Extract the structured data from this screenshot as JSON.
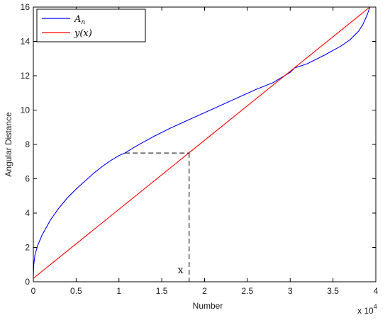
{
  "chart_data": {
    "type": "line",
    "xlabel": "Number",
    "ylabel": "Angular Distance",
    "x_multiplier": "x 10",
    "x_multiplier_exp": "4",
    "xlim": [
      0,
      4
    ],
    "ylim": [
      0,
      16
    ],
    "xticks": [
      0,
      0.5,
      1,
      1.5,
      2,
      2.5,
      3,
      3.5,
      4
    ],
    "xtick_labels": [
      "0",
      "0.5",
      "1",
      "1.5",
      "2",
      "2.5",
      "3",
      "3.5",
      "4"
    ],
    "yticks": [
      0,
      2,
      4,
      6,
      8,
      10,
      12,
      14,
      16
    ],
    "ytick_labels": [
      "0",
      "2",
      "4",
      "6",
      "8",
      "10",
      "12",
      "14",
      "16"
    ],
    "grid": false,
    "legend_position": "top-left",
    "series": [
      {
        "name": "A_n",
        "legend_base": "A",
        "legend_sub": "n",
        "color": "#0000ff",
        "x": [
          0,
          0.005,
          0.02,
          0.05,
          0.1,
          0.2,
          0.3,
          0.4,
          0.5,
          0.6,
          0.7,
          0.8,
          0.9,
          1.0,
          1.07,
          1.2,
          1.4,
          1.6,
          1.8,
          2.0,
          2.2,
          2.4,
          2.6,
          2.8,
          3.0,
          3.05,
          3.2,
          3.4,
          3.6,
          3.7,
          3.8,
          3.85,
          3.9,
          3.93
        ],
        "y": [
          0.3,
          1.0,
          1.6,
          2.1,
          2.7,
          3.6,
          4.3,
          4.9,
          5.4,
          5.85,
          6.3,
          6.7,
          7.05,
          7.35,
          7.5,
          7.9,
          8.45,
          8.95,
          9.4,
          9.85,
          10.3,
          10.75,
          11.2,
          11.6,
          12.2,
          12.45,
          12.7,
          13.2,
          13.75,
          14.1,
          14.6,
          15.0,
          15.55,
          16.0
        ]
      },
      {
        "name": "y(x)",
        "legend_text": "y(x)",
        "color": "#ff0000",
        "x": [
          0,
          3.93
        ],
        "y": [
          0.2,
          16.0
        ]
      }
    ],
    "annotations": [
      {
        "type": "dashed-guide",
        "x_from": 1.07,
        "x_to": 1.82,
        "y": 7.5,
        "x_drop": 1.82,
        "y_drop_from": 7.5,
        "y_drop_to": 0,
        "label": "x"
      }
    ]
  }
}
